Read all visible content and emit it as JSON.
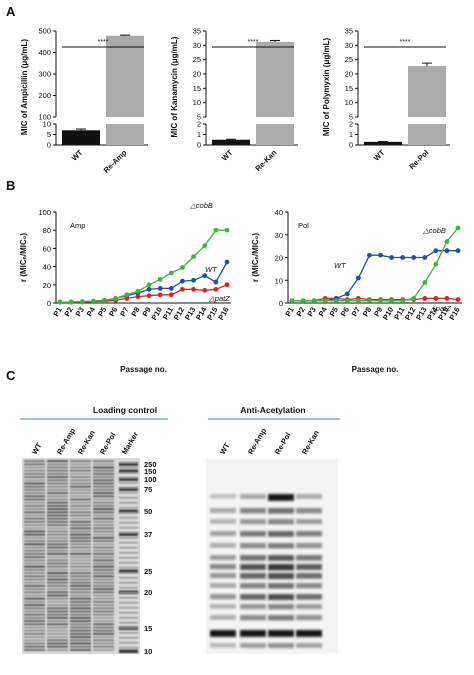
{
  "panels": {
    "a": "A",
    "b": "B",
    "c": "C"
  },
  "chart_data": [
    {
      "type": "bar",
      "panel": "A",
      "categories": [
        "WT",
        "Re-Amp"
      ],
      "values": [
        7,
        478
      ],
      "errors": [
        0.6,
        3
      ],
      "ylabel": "MIC of Ampicillin (μg/mL)",
      "yticks_low": [
        "0",
        "5",
        "10"
      ],
      "yticks_high": [
        "100",
        "200",
        "300",
        "400",
        "500"
      ],
      "axis_break": [
        10,
        100
      ],
      "significance": "****"
    },
    {
      "type": "bar",
      "panel": "A",
      "categories": [
        "WT",
        "Re-Kan"
      ],
      "values": [
        0.5,
        31.2
      ],
      "errors": [
        0.05,
        0.5
      ],
      "ylabel": "MIC of Kanamycin (μg/mL)",
      "yticks_low": [
        "0",
        "1",
        "2"
      ],
      "yticks_high": [
        "5",
        "10",
        "15",
        "20",
        "25",
        "30",
        "35"
      ],
      "axis_break": [
        2,
        5
      ],
      "significance": "****"
    },
    {
      "type": "bar",
      "panel": "A",
      "categories": [
        "WT",
        "Re-Pol"
      ],
      "values": [
        0.3,
        22.8
      ],
      "errors": [
        0.03,
        1.0
      ],
      "ylabel": "MIC of Polymyxin (μg/mL)",
      "yticks_low": [
        "0",
        "1",
        "2"
      ],
      "yticks_high": [
        "5",
        "10",
        "15",
        "20",
        "25",
        "30",
        "35"
      ],
      "axis_break": [
        2,
        5
      ],
      "significance": "****"
    },
    {
      "type": "line",
      "panel": "B",
      "annotation": "Amp",
      "x": [
        "P1",
        "P2",
        "P3",
        "P4",
        "P5",
        "P6",
        "P7",
        "P8",
        "P9",
        "P10",
        "P11",
        "P12",
        "P13",
        "P14",
        "P15",
        "P16"
      ],
      "xlabel": "Passage no.",
      "ylabel": "r (MICₙ/MIC₀)",
      "ylim": [
        0,
        100
      ],
      "yticks": [
        "0",
        "20",
        "40",
        "60",
        "80",
        "100"
      ],
      "series": [
        {
          "name": "△cobB",
          "color": "#3cb73c",
          "values": [
            1,
            1,
            1.5,
            2,
            3,
            5,
            9,
            13,
            20,
            26,
            33,
            39,
            51,
            63,
            80,
            80
          ]
        },
        {
          "name": "WT",
          "color": "#1f4fa8",
          "values": [
            1,
            1,
            1.5,
            2,
            3,
            5,
            8,
            11,
            15,
            16,
            16,
            24,
            25,
            30,
            23,
            45
          ]
        },
        {
          "name": "△patZ",
          "color": "#e02020",
          "values": [
            1,
            1,
            1,
            1.5,
            2,
            3,
            5,
            7,
            8,
            9,
            9,
            15,
            15,
            14,
            15,
            20
          ]
        }
      ]
    },
    {
      "type": "line",
      "panel": "B",
      "annotation": "Pol",
      "x": [
        "P1",
        "P2",
        "P3",
        "P4",
        "P5",
        "P6",
        "P7",
        "P8",
        "P9",
        "P10",
        "P11",
        "P12",
        "P13",
        "P14",
        "P15",
        "P16"
      ],
      "xlabel": "Passage no.",
      "ylabel": "r (MICₙ/MIC₀)",
      "ylim": [
        0,
        40
      ],
      "yticks": [
        "0",
        "10",
        "20",
        "30",
        "40"
      ],
      "series": [
        {
          "name": "△cobB",
          "color": "#3cb73c",
          "values": [
            1,
            1,
            1,
            1,
            1,
            1,
            1,
            1,
            1,
            1,
            1,
            2,
            9,
            17,
            27,
            33
          ]
        },
        {
          "name": "WT",
          "color": "#1f4fa8",
          "values": [
            1,
            1,
            1,
            1,
            2,
            4,
            11,
            21,
            21,
            20,
            20,
            20,
            20,
            23,
            23,
            23
          ]
        },
        {
          "name": "△patZ",
          "color": "#e02020",
          "values": [
            1,
            1,
            1,
            2,
            2,
            1.5,
            2,
            1.5,
            1.5,
            1.5,
            1.5,
            1.5,
            2,
            2,
            2,
            1.5
          ]
        }
      ]
    }
  ],
  "blot_left": {
    "title": "Loading control",
    "lanes": [
      "WT",
      "Re-Amp",
      "Re-Kan",
      "Re-Pol",
      "Marker"
    ],
    "markers": [
      "250",
      "150",
      "100",
      "75",
      "50",
      "37",
      "25",
      "20",
      "15",
      "10"
    ]
  },
  "blot_right": {
    "title": "Anti-Acetylation",
    "lanes": [
      "WT",
      "Re-Amp",
      "Re-Pol",
      "Re-Kan"
    ]
  }
}
